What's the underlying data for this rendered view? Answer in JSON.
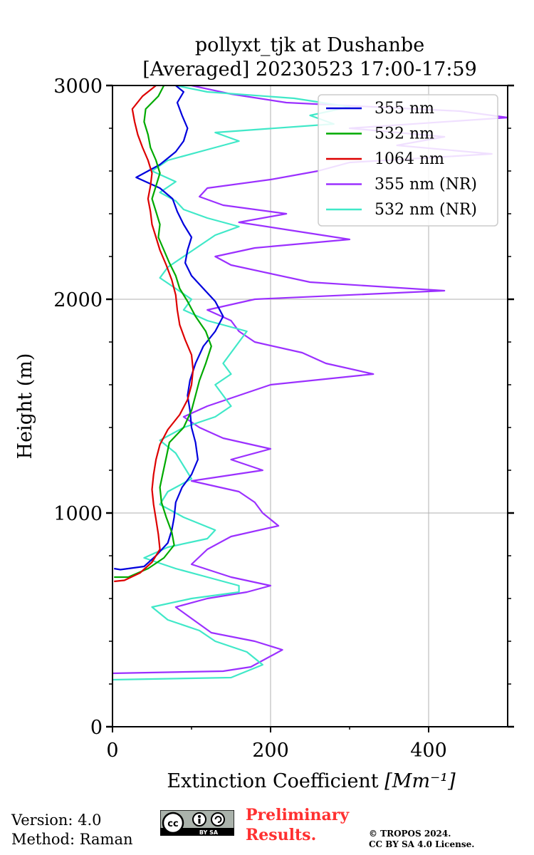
{
  "chart_data": {
    "type": "line",
    "title": "pollyxt_tjk at Dushanbe",
    "subtitle": "[Averaged] 20230523 17:00-17:59",
    "xlabel": "Extinction Coefficient",
    "xlabel_unit": "[Mm⁻¹]",
    "ylabel": "Height (m)",
    "xlim": [
      0,
      500
    ],
    "ylim": [
      0,
      3000
    ],
    "xticks": [
      0,
      200,
      400
    ],
    "yticks": [
      0,
      1000,
      2000,
      3000
    ],
    "grid": true,
    "legend_position": "top-right",
    "series": [
      {
        "name": "355 nm",
        "color": "#0000dd",
        "points": [
          [
            2,
            740
          ],
          [
            10,
            735
          ],
          [
            40,
            750
          ],
          [
            55,
            800
          ],
          [
            70,
            860
          ],
          [
            75,
            920
          ],
          [
            78,
            980
          ],
          [
            80,
            1050
          ],
          [
            88,
            1120
          ],
          [
            100,
            1180
          ],
          [
            108,
            1250
          ],
          [
            105,
            1330
          ],
          [
            100,
            1400
          ],
          [
            98,
            1480
          ],
          [
            95,
            1550
          ],
          [
            98,
            1620
          ],
          [
            105,
            1700
          ],
          [
            115,
            1780
          ],
          [
            130,
            1850
          ],
          [
            140,
            1920
          ],
          [
            130,
            1990
          ],
          [
            115,
            2050
          ],
          [
            100,
            2110
          ],
          [
            92,
            2170
          ],
          [
            95,
            2230
          ],
          [
            100,
            2290
          ],
          [
            90,
            2350
          ],
          [
            82,
            2410
          ],
          [
            76,
            2470
          ],
          [
            60,
            2520
          ],
          [
            30,
            2570
          ],
          [
            60,
            2630
          ],
          [
            80,
            2690
          ],
          [
            90,
            2740
          ],
          [
            95,
            2800
          ],
          [
            88,
            2860
          ],
          [
            82,
            2920
          ],
          [
            90,
            2970
          ],
          [
            80,
            3000
          ]
        ]
      },
      {
        "name": "532 nm",
        "color": "#00aa00",
        "points": [
          [
            2,
            700
          ],
          [
            20,
            700
          ],
          [
            45,
            740
          ],
          [
            65,
            790
          ],
          [
            78,
            850
          ],
          [
            75,
            910
          ],
          [
            68,
            980
          ],
          [
            62,
            1050
          ],
          [
            60,
            1120
          ],
          [
            64,
            1190
          ],
          [
            68,
            1260
          ],
          [
            72,
            1330
          ],
          [
            90,
            1400
          ],
          [
            100,
            1480
          ],
          [
            105,
            1550
          ],
          [
            110,
            1620
          ],
          [
            118,
            1700
          ],
          [
            125,
            1780
          ],
          [
            118,
            1850
          ],
          [
            105,
            1920
          ],
          [
            95,
            1990
          ],
          [
            85,
            2050
          ],
          [
            80,
            2110
          ],
          [
            72,
            2170
          ],
          [
            65,
            2230
          ],
          [
            58,
            2290
          ],
          [
            60,
            2350
          ],
          [
            55,
            2410
          ],
          [
            50,
            2470
          ],
          [
            55,
            2530
          ],
          [
            60,
            2590
          ],
          [
            55,
            2650
          ],
          [
            48,
            2710
          ],
          [
            45,
            2770
          ],
          [
            40,
            2830
          ],
          [
            42,
            2890
          ],
          [
            58,
            2950
          ],
          [
            65,
            3000
          ]
        ]
      },
      {
        "name": "1064 nm",
        "color": "#dd0000",
        "points": [
          [
            2,
            680
          ],
          [
            15,
            685
          ],
          [
            35,
            720
          ],
          [
            50,
            770
          ],
          [
            60,
            830
          ],
          [
            58,
            900
          ],
          [
            55,
            970
          ],
          [
            52,
            1040
          ],
          [
            50,
            1110
          ],
          [
            52,
            1180
          ],
          [
            55,
            1250
          ],
          [
            60,
            1320
          ],
          [
            70,
            1390
          ],
          [
            85,
            1460
          ],
          [
            95,
            1530
          ],
          [
            100,
            1600
          ],
          [
            102,
            1670
          ],
          [
            100,
            1740
          ],
          [
            92,
            1810
          ],
          [
            85,
            1880
          ],
          [
            82,
            1950
          ],
          [
            80,
            2020
          ],
          [
            75,
            2090
          ],
          [
            68,
            2160
          ],
          [
            60,
            2230
          ],
          [
            55,
            2290
          ],
          [
            50,
            2350
          ],
          [
            48,
            2410
          ],
          [
            45,
            2470
          ],
          [
            48,
            2530
          ],
          [
            50,
            2590
          ],
          [
            45,
            2650
          ],
          [
            38,
            2710
          ],
          [
            32,
            2770
          ],
          [
            28,
            2830
          ],
          [
            25,
            2890
          ],
          [
            38,
            2950
          ],
          [
            55,
            3000
          ]
        ]
      },
      {
        "name": "355 nm (NR)",
        "color": "#9b30ff",
        "points": [
          [
            0,
            250
          ],
          [
            140,
            260
          ],
          [
            175,
            280
          ],
          [
            215,
            360
          ],
          [
            180,
            400
          ],
          [
            125,
            440
          ],
          [
            110,
            480
          ],
          [
            95,
            520
          ],
          [
            80,
            560
          ],
          [
            120,
            600
          ],
          [
            170,
            630
          ],
          [
            200,
            660
          ],
          [
            150,
            700
          ],
          [
            100,
            760
          ],
          [
            120,
            830
          ],
          [
            150,
            890
          ],
          [
            210,
            940
          ],
          [
            190,
            1000
          ],
          [
            180,
            1050
          ],
          [
            160,
            1100
          ],
          [
            100,
            1150
          ],
          [
            190,
            1200
          ],
          [
            150,
            1250
          ],
          [
            200,
            1300
          ],
          [
            140,
            1350
          ],
          [
            110,
            1400
          ],
          [
            90,
            1450
          ],
          [
            120,
            1500
          ],
          [
            160,
            1550
          ],
          [
            200,
            1600
          ],
          [
            330,
            1650
          ],
          [
            270,
            1700
          ],
          [
            240,
            1750
          ],
          [
            180,
            1800
          ],
          [
            160,
            1850
          ],
          [
            150,
            1900
          ],
          [
            120,
            1950
          ],
          [
            180,
            2000
          ],
          [
            420,
            2040
          ],
          [
            250,
            2080
          ],
          [
            200,
            2120
          ],
          [
            150,
            2160
          ],
          [
            130,
            2200
          ],
          [
            180,
            2240
          ],
          [
            300,
            2280
          ],
          [
            230,
            2320
          ],
          [
            160,
            2360
          ],
          [
            220,
            2400
          ],
          [
            140,
            2440
          ],
          [
            110,
            2480
          ],
          [
            120,
            2520
          ],
          [
            200,
            2560
          ],
          [
            260,
            2600
          ],
          [
            300,
            2640
          ],
          [
            480,
            2680
          ],
          [
            360,
            2720
          ],
          [
            420,
            2760
          ],
          [
            300,
            2800
          ],
          [
            500,
            2850
          ],
          [
            440,
            2880
          ],
          [
            220,
            2920
          ],
          [
            150,
            2960
          ],
          [
            100,
            3000
          ]
        ]
      },
      {
        "name": "532 nm (NR)",
        "color": "#40e8c8",
        "points": [
          [
            0,
            220
          ],
          [
            150,
            230
          ],
          [
            190,
            290
          ],
          [
            170,
            350
          ],
          [
            130,
            400
          ],
          [
            110,
            450
          ],
          [
            70,
            500
          ],
          [
            50,
            560
          ],
          [
            100,
            600
          ],
          [
            160,
            630
          ],
          [
            160,
            660
          ],
          [
            120,
            700
          ],
          [
            80,
            740
          ],
          [
            40,
            790
          ],
          [
            70,
            840
          ],
          [
            120,
            880
          ],
          [
            130,
            920
          ],
          [
            90,
            980
          ],
          [
            60,
            1040
          ],
          [
            70,
            1100
          ],
          [
            100,
            1160
          ],
          [
            90,
            1220
          ],
          [
            80,
            1280
          ],
          [
            60,
            1340
          ],
          [
            90,
            1400
          ],
          [
            130,
            1450
          ],
          [
            150,
            1500
          ],
          [
            140,
            1550
          ],
          [
            130,
            1600
          ],
          [
            150,
            1650
          ],
          [
            140,
            1700
          ],
          [
            150,
            1750
          ],
          [
            160,
            1800
          ],
          [
            170,
            1850
          ],
          [
            120,
            1900
          ],
          [
            90,
            1950
          ],
          [
            100,
            2000
          ],
          [
            80,
            2050
          ],
          [
            60,
            2100
          ],
          [
            70,
            2150
          ],
          [
            90,
            2200
          ],
          [
            110,
            2250
          ],
          [
            130,
            2300
          ],
          [
            160,
            2340
          ],
          [
            120,
            2380
          ],
          [
            90,
            2420
          ],
          [
            80,
            2460
          ],
          [
            60,
            2500
          ],
          [
            80,
            2550
          ],
          [
            50,
            2600
          ],
          [
            70,
            2650
          ],
          [
            120,
            2700
          ],
          [
            160,
            2740
          ],
          [
            130,
            2780
          ],
          [
            280,
            2820
          ],
          [
            250,
            2860
          ],
          [
            300,
            2900
          ],
          [
            230,
            2940
          ],
          [
            120,
            2970
          ],
          [
            80,
            3000
          ]
        ]
      }
    ]
  },
  "footer": {
    "version": "Version: 4.0",
    "method": "Method: Raman",
    "preliminary_line1": "Preliminary",
    "preliminary_line2": "Results.",
    "copyright_line1": "© TROPOS 2024.",
    "copyright_line2": "CC BY SA 4.0 License.",
    "cc_badge": "BY SA",
    "cc_icon": "cc-icon"
  }
}
